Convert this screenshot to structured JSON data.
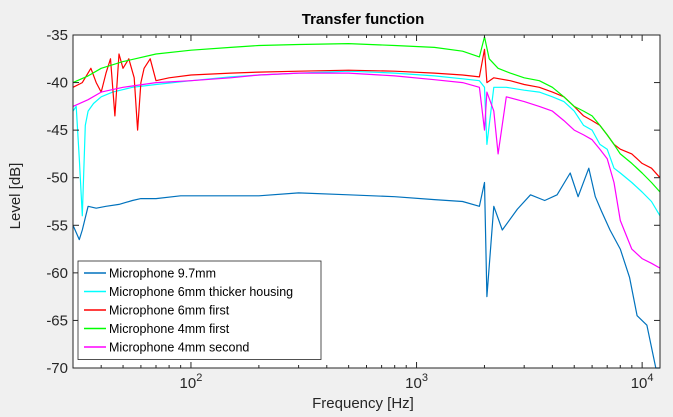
{
  "chart_data": {
    "type": "line",
    "title": "Transfer function",
    "xlabel": "Frequency [Hz]",
    "ylabel": "Level [dB]",
    "xscale": "log",
    "xlim": [
      30,
      12000
    ],
    "ylim": [
      -70,
      -35
    ],
    "grid": false,
    "legend_position": "bottom-left",
    "x_ticks": [
      {
        "value": 100,
        "base": "10",
        "exp": "2"
      },
      {
        "value": 1000,
        "base": "10",
        "exp": "3"
      },
      {
        "value": 10000,
        "base": "10",
        "exp": "4"
      }
    ],
    "y_ticks": [
      -35,
      -40,
      -45,
      -50,
      -55,
      -60,
      -65,
      -70
    ],
    "series": [
      {
        "name": "Microphone 9.7mm",
        "color": "#0072bd",
        "x": [
          30,
          32,
          33,
          35,
          38,
          42,
          48,
          55,
          60,
          70,
          90,
          120,
          200,
          300,
          500,
          800,
          1200,
          1600,
          1900,
          2000,
          2050,
          2200,
          2400,
          2800,
          3200,
          3700,
          4200,
          4800,
          5200,
          5800,
          6200,
          6600,
          7200,
          8000,
          8800,
          9500,
          10500,
          11500,
          12000
        ],
        "y": [
          -55,
          -56.5,
          -55.5,
          -53,
          -53.2,
          -53,
          -52.8,
          -52.4,
          -52.2,
          -52.2,
          -51.9,
          -51.9,
          -51.9,
          -51.6,
          -51.8,
          -52.0,
          -52.3,
          -52.5,
          -53.0,
          -50.5,
          -62.5,
          -53.0,
          -55.5,
          -53.3,
          -51.8,
          -52.4,
          -51.8,
          -49.5,
          -52.0,
          -49.0,
          -52.0,
          -53.5,
          -55.5,
          -57.5,
          -60.5,
          -64.5,
          -65.5,
          -70,
          -70
        ]
      },
      {
        "name": "Microphone 6mm thicker housing",
        "color": "#00ffff",
        "x": [
          30,
          31,
          32,
          33,
          34,
          35,
          37,
          40,
          45,
          55,
          70,
          100,
          150,
          200,
          300,
          500,
          800,
          1200,
          1600,
          1900,
          2000,
          2050,
          2200,
          2500,
          3000,
          3500,
          4000,
          4500,
          5000,
          5500,
          6000,
          6500,
          7000,
          7500,
          8000,
          9000,
          10000,
          11000,
          12000
        ],
        "y": [
          -43,
          -42.5,
          -48,
          -54,
          -44.5,
          -43.0,
          -42.2,
          -41.5,
          -41.0,
          -40.5,
          -40.2,
          -39.8,
          -39.4,
          -39.2,
          -39.0,
          -38.8,
          -39.0,
          -39.3,
          -39.6,
          -39.8,
          -40.5,
          -46.5,
          -40.5,
          -40.5,
          -40.8,
          -41.0,
          -41.5,
          -42.0,
          -43.0,
          -44.5,
          -45.0,
          -46.5,
          -47.0,
          -49.0,
          -49.5,
          -50.5,
          -51.5,
          -52.5,
          -54.0
        ]
      },
      {
        "name": "Microphone 6mm first",
        "color": "#ff0000",
        "x": [
          30,
          33,
          36,
          38,
          40,
          42,
          44,
          46,
          48,
          50,
          53,
          56,
          58,
          60,
          62,
          66,
          70,
          80,
          100,
          150,
          200,
          300,
          500,
          800,
          1200,
          1600,
          1900,
          2000,
          2050,
          2200,
          2600,
          3000,
          3500,
          4000,
          4500,
          5000,
          5500,
          6000,
          6500,
          7000,
          7500,
          8000,
          9000,
          10000,
          11000,
          12000
        ],
        "y": [
          -40.5,
          -40,
          -38.5,
          -40,
          -41,
          -39,
          -37.5,
          -43.5,
          -37,
          -38.5,
          -37.5,
          -39.5,
          -45,
          -40,
          -38.5,
          -37.5,
          -39.8,
          -39.5,
          -39.2,
          -39.0,
          -38.9,
          -38.8,
          -38.7,
          -38.8,
          -39.0,
          -39.2,
          -39.4,
          -36.5,
          -40.0,
          -39.5,
          -39.8,
          -40.2,
          -40.5,
          -41.0,
          -41.5,
          -42.5,
          -43.5,
          -44.0,
          -44.5,
          -45.5,
          -46.5,
          -47.0,
          -47.5,
          -48.5,
          -49.0,
          -50.0
        ]
      },
      {
        "name": "Microphone 4mm first",
        "color": "#00ff00",
        "x": [
          30,
          35,
          40,
          50,
          70,
          100,
          150,
          200,
          300,
          500,
          800,
          1200,
          1600,
          1900,
          2000,
          2100,
          2300,
          2600,
          3000,
          3500,
          4000,
          4500,
          5000,
          5500,
          6000,
          6500,
          7000,
          7500,
          8000,
          9000,
          10000,
          11000,
          12000
        ],
        "y": [
          -40,
          -39.3,
          -38.5,
          -37.8,
          -37.0,
          -36.6,
          -36.3,
          -36.1,
          -36.0,
          -35.9,
          -36.1,
          -36.3,
          -36.7,
          -37.3,
          -35.2,
          -37.5,
          -38.5,
          -39.0,
          -39.5,
          -39.8,
          -40.5,
          -41.5,
          -42.5,
          -43.0,
          -43.5,
          -44.5,
          -45.5,
          -46.5,
          -47.5,
          -48.5,
          -49.5,
          -50.5,
          -51.5
        ]
      },
      {
        "name": "Microphone 4mm second",
        "color": "#ff00ff",
        "x": [
          30,
          35,
          40,
          50,
          70,
          100,
          150,
          200,
          300,
          500,
          800,
          1200,
          1600,
          1900,
          2000,
          2050,
          2200,
          2300,
          2500,
          3000,
          3500,
          4000,
          4500,
          5000,
          5500,
          6000,
          6500,
          7000,
          7500,
          8000,
          9000,
          10000,
          11000,
          12000
        ],
        "y": [
          -42.5,
          -41.8,
          -41.0,
          -40.5,
          -40.0,
          -39.8,
          -39.5,
          -39.2,
          -39.0,
          -39.0,
          -39.3,
          -39.7,
          -40.0,
          -40.5,
          -45.0,
          -41.0,
          -43.0,
          -47.5,
          -41.5,
          -42.0,
          -42.5,
          -43.0,
          -44.0,
          -45.0,
          -45.5,
          -46.0,
          -47.0,
          -48.0,
          -50.5,
          -54.5,
          -57.5,
          -58.5,
          -59.0,
          -59.5
        ]
      }
    ]
  }
}
